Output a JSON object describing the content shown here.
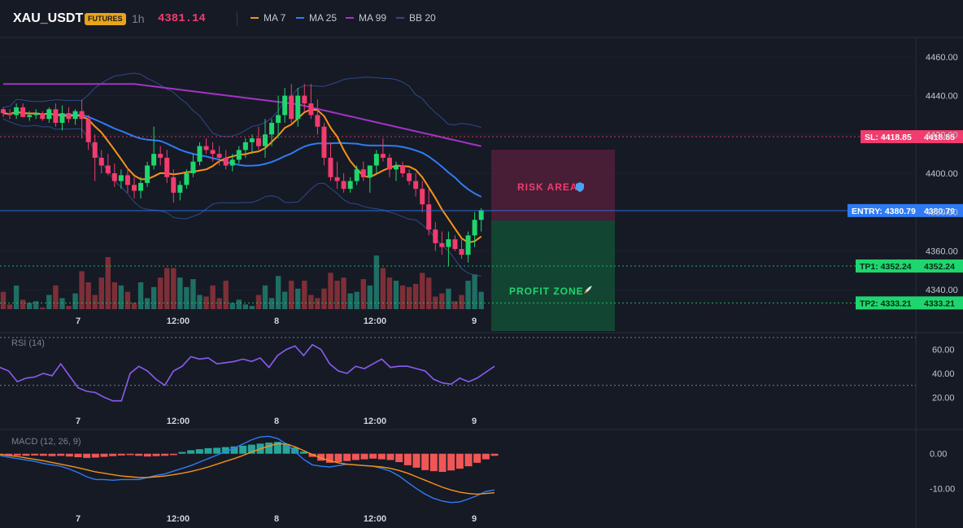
{
  "header": {
    "symbol": "XAU_USDT",
    "badge": "FUTURES",
    "timeframe": "1h",
    "price": "4381.14",
    "legend": [
      {
        "label": "MA 7",
        "color": "#f7931a"
      },
      {
        "label": "MA 25",
        "color": "#2f7bf5"
      },
      {
        "label": "MA 99",
        "color": "#a334c4"
      },
      {
        "label": "BB 20",
        "color": "#2e4a8c"
      }
    ]
  },
  "zones": {
    "risk_label": "RISK AREA",
    "risk_icon": "shield-icon",
    "profit_label": "PROFIT ZONE",
    "profit_icon": "rocket-icon"
  },
  "levels": {
    "sl": {
      "tag": "SL: 4418.85",
      "value": "4418.85",
      "price": 4418.85,
      "color": "#f23c6e"
    },
    "entry": {
      "tag": "ENTRY: 4380.79",
      "value": "4380.79",
      "price": 4380.79,
      "color": "#2f7bf5"
    },
    "tp1": {
      "tag": "TP1: 4352.24",
      "value": "4352.24",
      "price": 4352.24,
      "color": "#1fd66e"
    },
    "tp2": {
      "tag": "TP2: 4333.21",
      "value": "4333.21",
      "price": 4333.21,
      "color": "#1fd66e"
    }
  },
  "time_axis": [
    "7",
    "12:00",
    "8",
    "12:00",
    "9"
  ],
  "rsi": {
    "title": "RSI (14)",
    "ticks": [
      "60.00",
      "40.00",
      "20.00"
    ]
  },
  "macd": {
    "title": "MACD (12, 26, 9)",
    "ticks": [
      "0.00",
      "-10.00"
    ]
  },
  "chart_data": [
    {
      "type": "candlestick",
      "ylim": [
        4330,
        4470
      ],
      "y_ticks": [
        4340,
        4360,
        4380,
        4400,
        4420,
        4440,
        4460
      ],
      "x_labels": [
        "7",
        "12:00",
        "8",
        "12:00",
        "9"
      ],
      "candles": [
        [
          4433,
          4434,
          4429,
          4431
        ],
        [
          4431,
          4433,
          4428,
          4430
        ],
        [
          4430,
          4436,
          4428,
          4434
        ],
        [
          4434,
          4436,
          4429,
          4429
        ],
        [
          4429,
          4432,
          4427,
          4430
        ],
        [
          4430,
          4433,
          4428,
          4431
        ],
        [
          4431,
          4432,
          4427,
          4428
        ],
        [
          4428,
          4434,
          4426,
          4433
        ],
        [
          4433,
          4436,
          4424,
          4426
        ],
        [
          4426,
          4435,
          4422,
          4431
        ],
        [
          4431,
          4434,
          4426,
          4428
        ],
        [
          4428,
          4433,
          4425,
          4432
        ],
        [
          4432,
          4438,
          4418,
          4428
        ],
        [
          4428,
          4430,
          4412,
          4416
        ],
        [
          4416,
          4420,
          4396,
          4408
        ],
        [
          4408,
          4412,
          4400,
          4404
        ],
        [
          4404,
          4410,
          4399,
          4400
        ],
        [
          4400,
          4405,
          4393,
          4396
        ],
        [
          4396,
          4402,
          4392,
          4399
        ],
        [
          4399,
          4403,
          4390,
          4394
        ],
        [
          4394,
          4398,
          4387,
          4391
        ],
        [
          4391,
          4398,
          4387,
          4395
        ],
        [
          4395,
          4406,
          4393,
          4404
        ],
        [
          4404,
          4424,
          4402,
          4410
        ],
        [
          4410,
          4414,
          4404,
          4408
        ],
        [
          4408,
          4412,
          4395,
          4398
        ],
        [
          4398,
          4402,
          4385,
          4390
        ],
        [
          4390,
          4396,
          4386,
          4394
        ],
        [
          4394,
          4402,
          4392,
          4400
        ],
        [
          4400,
          4410,
          4398,
          4406
        ],
        [
          4406,
          4416,
          4404,
          4414
        ],
        [
          4414,
          4418,
          4410,
          4412
        ],
        [
          4412,
          4416,
          4406,
          4410
        ],
        [
          4410,
          4414,
          4404,
          4408
        ],
        [
          4408,
          4412,
          4402,
          4404
        ],
        [
          4404,
          4410,
          4401,
          4407
        ],
        [
          4407,
          4414,
          4405,
          4412
        ],
        [
          4412,
          4418,
          4408,
          4416
        ],
        [
          4416,
          4420,
          4410,
          4418
        ],
        [
          4418,
          4424,
          4412,
          4414
        ],
        [
          4414,
          4428,
          4408,
          4420
        ],
        [
          4420,
          4428,
          4414,
          4426
        ],
        [
          4426,
          4440,
          4418,
          4430
        ],
        [
          4430,
          4444,
          4426,
          4440
        ],
        [
          4440,
          4446,
          4426,
          4428
        ],
        [
          4428,
          4444,
          4424,
          4440
        ],
        [
          4440,
          4446,
          4432,
          4436
        ],
        [
          4436,
          4446,
          4428,
          4430
        ],
        [
          4430,
          4438,
          4420,
          4424
        ],
        [
          4424,
          4426,
          4404,
          4408
        ],
        [
          4408,
          4416,
          4396,
          4398
        ],
        [
          4398,
          4406,
          4392,
          4396
        ],
        [
          4396,
          4400,
          4390,
          4392
        ],
        [
          4392,
          4398,
          4390,
          4396
        ],
        [
          4396,
          4404,
          4394,
          4402
        ],
        [
          4402,
          4406,
          4396,
          4398
        ],
        [
          4398,
          4404,
          4390,
          4404
        ],
        [
          4404,
          4412,
          4400,
          4410
        ],
        [
          4410,
          4418,
          4406,
          4408
        ],
        [
          4408,
          4410,
          4398,
          4402
        ],
        [
          4402,
          4406,
          4396,
          4404
        ],
        [
          4404,
          4406,
          4398,
          4400
        ],
        [
          4400,
          4402,
          4394,
          4396
        ],
        [
          4396,
          4400,
          4388,
          4392
        ],
        [
          4392,
          4396,
          4380,
          4384
        ],
        [
          4384,
          4392,
          4368,
          4371
        ],
        [
          4371,
          4375,
          4360,
          4364
        ],
        [
          4364,
          4370,
          4358,
          4362
        ],
        [
          4362,
          4370,
          4352,
          4366
        ],
        [
          4366,
          4368,
          4360,
          4361
        ],
        [
          4361,
          4366,
          4356,
          4358
        ],
        [
          4358,
          4370,
          4354,
          4368
        ],
        [
          4368,
          4380,
          4362,
          4376
        ],
        [
          4376,
          4382,
          4370,
          4381
        ]
      ],
      "volume": [
        22,
        6,
        30,
        12,
        8,
        10,
        2,
        18,
        30,
        14,
        4,
        20,
        48,
        34,
        18,
        40,
        66,
        34,
        30,
        22,
        8,
        34,
        14,
        28,
        40,
        52,
        52,
        40,
        28,
        38,
        18,
        16,
        30,
        14,
        36,
        8,
        12,
        6,
        4,
        18,
        30,
        14,
        42,
        22,
        36,
        26,
        36,
        18,
        14,
        26,
        46,
        36,
        40,
        20,
        22,
        38,
        30,
        68,
        52,
        40,
        36,
        30,
        28,
        32,
        46,
        40,
        16,
        20,
        26,
        10,
        18,
        36,
        44,
        22
      ]
    },
    {
      "type": "line",
      "title": "RSI (14)",
      "ylim": [
        10,
        72
      ],
      "y_ticks": [
        60,
        40,
        20
      ],
      "x_labels": [
        "7",
        "12:00",
        "8",
        "12:00",
        "9"
      ],
      "values": [
        45,
        42,
        33,
        36,
        37,
        40,
        38,
        48,
        38,
        28,
        25,
        24,
        20,
        17,
        17,
        40,
        46,
        42,
        35,
        30,
        42,
        46,
        54,
        52,
        53,
        48,
        49,
        50,
        52,
        50,
        53,
        45,
        55,
        60,
        63,
        55,
        64,
        60,
        48,
        42,
        40,
        46,
        44,
        48,
        52,
        45,
        46,
        46,
        44,
        42,
        35,
        32,
        31,
        36,
        33,
        36,
        41,
        46
      ]
    },
    {
      "type": "bar+line",
      "title": "MACD (12, 26, 9)",
      "ylim": [
        -15,
        6
      ],
      "y_ticks": [
        0,
        -10
      ],
      "x_labels": [
        "7",
        "12:00",
        "8",
        "12:00",
        "9"
      ],
      "histogram": [
        -0.2,
        -0.4,
        -0.5,
        -0.6,
        -0.5,
        -0.6,
        -0.7,
        -0.6,
        -0.8,
        -1.0,
        -1.2,
        -1.1,
        -0.9,
        -0.7,
        -0.5,
        -0.4,
        -0.6,
        -0.8,
        -0.7,
        -0.6,
        -0.4,
        0.5,
        1.0,
        1.3,
        1.6,
        1.7,
        1.9,
        2.1,
        2.3,
        2.6,
        2.9,
        3.2,
        3.4,
        2.8,
        1.8,
        0.6,
        -0.9,
        -2.0,
        -2.6,
        -2.4,
        -2.1,
        -1.8,
        -1.6,
        -1.4,
        -1.6,
        -1.8,
        -2.4,
        -3.3,
        -4.0,
        -4.7,
        -5.0,
        -5.2,
        -4.8,
        -4.3,
        -3.6,
        -2.6,
        -1.6,
        -0.6
      ],
      "macd": [
        -0.5,
        -1.0,
        -1.4,
        -1.8,
        -2.2,
        -2.8,
        -3.2,
        -3.6,
        -4.4,
        -5.4,
        -6.6,
        -7.4,
        -7.4,
        -7.6,
        -7.4,
        -7.4,
        -7.4,
        -6.8,
        -6.2,
        -5.8,
        -5.0,
        -4.2,
        -3.4,
        -2.4,
        -1.4,
        -0.4,
        0.6,
        1.6,
        2.8,
        4.0,
        4.8,
        5.0,
        4.4,
        2.8,
        0.6,
        -1.6,
        -3.2,
        -3.6,
        -3.8,
        -3.4,
        -3.0,
        -3.2,
        -3.4,
        -3.6,
        -4.2,
        -5.0,
        -6.4,
        -8.2,
        -10.0,
        -11.6,
        -12.8,
        -13.6,
        -14.0,
        -13.8,
        -13.0,
        -12.0,
        -10.8,
        -10.4
      ],
      "signal": [
        -0.2,
        -0.5,
        -0.8,
        -1.2,
        -1.6,
        -2.0,
        -2.5,
        -3.0,
        -3.5,
        -4.0,
        -4.6,
        -5.2,
        -5.6,
        -6.0,
        -6.4,
        -6.6,
        -6.8,
        -6.8,
        -6.6,
        -6.4,
        -6.0,
        -5.6,
        -5.1,
        -4.5,
        -3.8,
        -3.0,
        -2.2,
        -1.4,
        -0.5,
        0.5,
        1.4,
        2.2,
        2.9,
        2.8,
        2.0,
        0.9,
        -0.2,
        -1.2,
        -2.0,
        -2.6,
        -3.0,
        -3.2,
        -3.4,
        -3.6,
        -3.8,
        -4.2,
        -4.8,
        -5.6,
        -6.6,
        -7.6,
        -8.6,
        -9.6,
        -10.4,
        -11.0,
        -11.4,
        -11.6,
        -11.4,
        -11.2
      ]
    }
  ]
}
